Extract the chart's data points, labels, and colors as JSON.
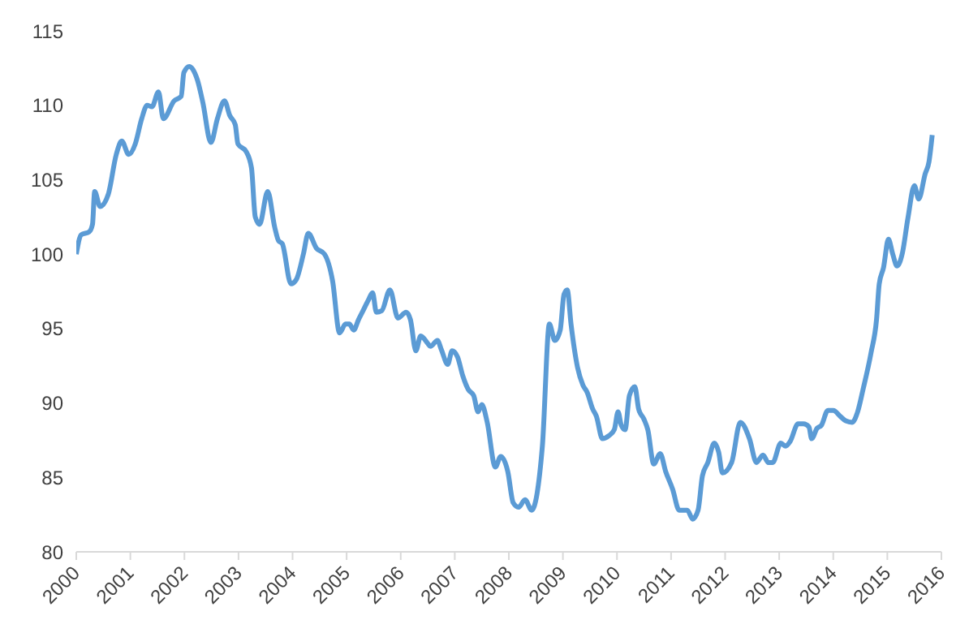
{
  "chart_data": {
    "type": "line",
    "x": [
      2000.0,
      2000.09,
      2000.24,
      2000.3,
      2000.34,
      2000.44,
      2000.59,
      2000.74,
      2000.84,
      2000.97,
      2001.09,
      2001.21,
      2001.31,
      2001.4,
      2001.52,
      2001.61,
      2001.81,
      2001.94,
      2001.99,
      2002.09,
      2002.24,
      2002.34,
      2002.49,
      2002.61,
      2002.74,
      2002.84,
      2002.94,
      2002.99,
      2003.14,
      2003.24,
      2003.31,
      2003.39,
      2003.54,
      2003.67,
      2003.74,
      2003.81,
      2003.97,
      2004.07,
      2004.2,
      2004.29,
      2004.44,
      2004.59,
      2004.74,
      2004.87,
      2004.98,
      2005.05,
      2005.13,
      2005.22,
      2005.29,
      2005.4,
      2005.48,
      2005.55,
      2005.65,
      2005.8,
      2005.95,
      2006.1,
      2006.18,
      2006.28,
      2006.37,
      2006.5,
      2006.55,
      2006.68,
      2006.75,
      2006.87,
      2006.95,
      2007.05,
      2007.15,
      2007.25,
      2007.35,
      2007.43,
      2007.5,
      2007.6,
      2007.75,
      2007.85,
      2007.98,
      2008.08,
      2008.18,
      2008.3,
      2008.42,
      2008.62,
      2008.75,
      2008.85,
      2008.95,
      2009.02,
      2009.08,
      2009.15,
      2009.27,
      2009.37,
      2009.45,
      2009.55,
      2009.62,
      2009.73,
      2009.85,
      2009.95,
      2010.02,
      2010.08,
      2010.15,
      2010.23,
      2010.33,
      2010.4,
      2010.5,
      2010.57,
      2010.68,
      2010.8,
      2010.9,
      2011.03,
      2011.15,
      2011.3,
      2011.4,
      2011.5,
      2011.58,
      2011.68,
      2011.8,
      2011.88,
      2011.95,
      2012.12,
      2012.28,
      2012.45,
      2012.58,
      2012.7,
      2012.8,
      2012.88,
      2013.03,
      2013.12,
      2013.2,
      2013.35,
      2013.45,
      2013.55,
      2013.6,
      2013.7,
      2013.78,
      2013.9,
      2014.0,
      2014.13,
      2014.23,
      2014.35,
      2014.45,
      2014.55,
      2014.7,
      2014.8,
      2014.85,
      2014.93,
      2015.02,
      2015.1,
      2015.18,
      2015.28,
      2015.38,
      2015.5,
      2015.58,
      2015.7,
      2015.77,
      2015.83
    ],
    "series": [
      {
        "color": "#5b9bd5",
        "values": [
          100.0,
          101.3,
          101.5,
          102.0,
          104.2,
          103.2,
          104.0,
          106.7,
          107.6,
          106.7,
          107.4,
          109.1,
          110.0,
          109.9,
          110.9,
          109.1,
          110.3,
          110.6,
          112.2,
          112.6,
          111.7,
          110.2,
          107.5,
          109.1,
          110.3,
          109.3,
          108.7,
          107.4,
          106.9,
          105.8,
          102.5,
          102.0,
          104.2,
          101.8,
          100.9,
          100.7,
          98.0,
          98.3,
          100.0,
          101.4,
          100.4,
          100.0,
          98.2,
          94.7,
          95.3,
          95.3,
          94.9,
          95.6,
          96.1,
          96.9,
          97.4,
          96.1,
          96.2,
          97.6,
          95.7,
          96.1,
          95.6,
          93.5,
          94.5,
          94.0,
          93.8,
          94.2,
          93.6,
          92.6,
          93.5,
          93.1,
          91.8,
          90.9,
          90.5,
          89.4,
          89.9,
          88.7,
          85.7,
          86.4,
          85.4,
          83.3,
          83.0,
          83.5,
          82.8,
          87.1,
          95.3,
          94.2,
          94.9,
          97.3,
          97.6,
          95.3,
          92.4,
          91.2,
          90.7,
          89.6,
          89.1,
          87.6,
          87.8,
          88.2,
          89.4,
          88.5,
          88.2,
          90.5,
          91.1,
          89.6,
          88.9,
          88.2,
          85.9,
          86.6,
          85.4,
          84.2,
          82.8,
          82.8,
          82.2,
          82.8,
          85.1,
          86.0,
          87.3,
          86.7,
          85.3,
          86.0,
          88.7,
          87.6,
          86.0,
          86.5,
          86.0,
          86.0,
          87.3,
          87.1,
          87.4,
          88.6,
          88.6,
          88.4,
          87.6,
          88.3,
          88.5,
          89.5,
          89.5,
          89.1,
          88.8,
          88.7,
          89.4,
          90.9,
          93.4,
          95.6,
          98.0,
          99.1,
          101.0,
          100.0,
          99.2,
          100.1,
          102.4,
          104.6,
          103.7,
          105.4,
          106.2,
          108.0
        ]
      }
    ],
    "xlim": [
      2000,
      2016
    ],
    "xticks": [
      2000,
      2001,
      2002,
      2003,
      2004,
      2005,
      2006,
      2007,
      2008,
      2009,
      2010,
      2011,
      2012,
      2013,
      2014,
      2015,
      2016
    ],
    "ylim": [
      80,
      115
    ],
    "yticks": [
      80,
      85,
      90,
      95,
      100,
      105,
      110,
      115
    ],
    "marker": "none",
    "line_style": "solid"
  }
}
